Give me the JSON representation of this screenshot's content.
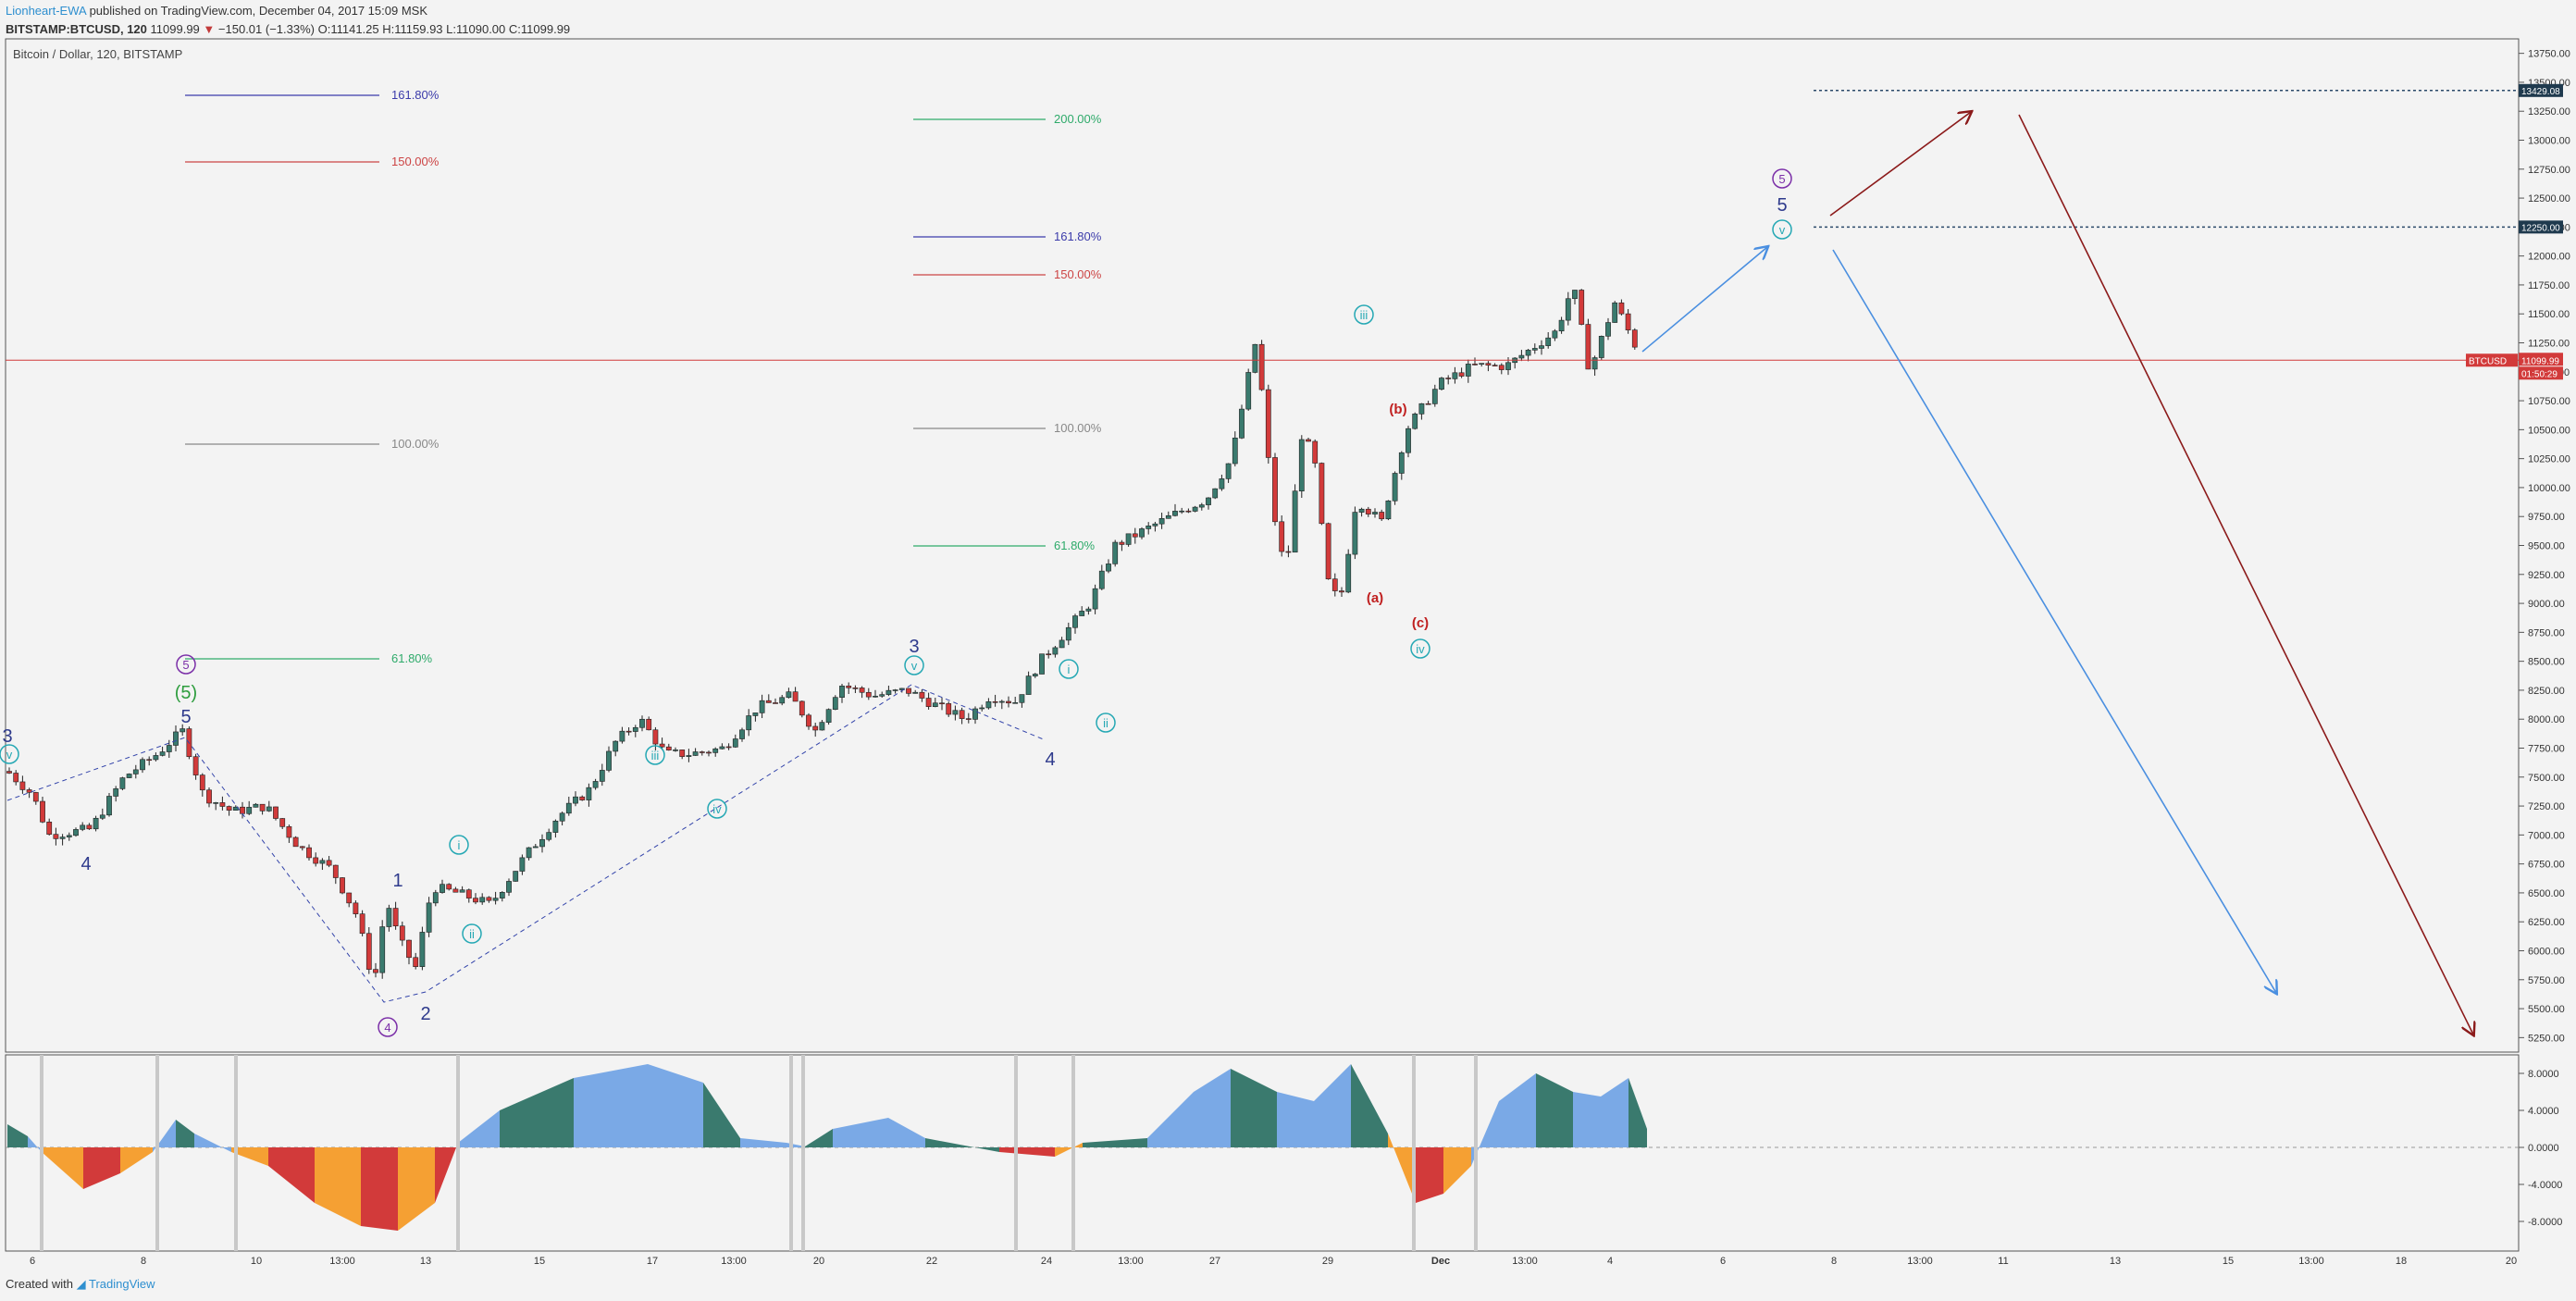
{
  "header": {
    "line1_author": "Lionheart-EWA",
    "line1_rest": " published on TradingView.com, December 04, 2017 15:09 MSK",
    "symbol": "BITSTAMP:BTCUSD, 120",
    "last": "11099.99",
    "change": "−150.01 (−1.33%)",
    "open": "O:11141.25",
    "high": "H:11159.93",
    "low": "L:11090.00",
    "close": "C:11099.99"
  },
  "footer": {
    "created_with": "Created with",
    "brand": "TradingView"
  },
  "colors": {
    "up": "#3a7a6e",
    "down": "#d23a3a",
    "blue": "#4a8fe0",
    "darkred": "#8b1a1a",
    "navy": "#2e3a8c",
    "purple": "#7b2fa8",
    "teal": "#25a8b4",
    "green": "#2e9d3e"
  },
  "chart_data": [
    {
      "type": "candlestick",
      "title": "Bitcoin / Dollar, 120, BITSTAMP",
      "ylim": [
        5125,
        13875
      ],
      "y_ticks": [
        "13750.00",
        "13500.00",
        "13250.00",
        "13000.00",
        "12750.00",
        "12500.00",
        "12250.00",
        "12000.00",
        "11750.00",
        "11500.00",
        "11250.00",
        "11000.00",
        "10750.00",
        "10500.00",
        "10250.00",
        "10000.00",
        "9750.00",
        "9500.00",
        "9250.00",
        "9000.00",
        "8750.00",
        "8500.00",
        "8250.00",
        "8000.00",
        "7750.00",
        "7500.00",
        "7250.00",
        "7000.00",
        "6750.00",
        "6500.00",
        "6250.00",
        "6000.00",
        "5750.00",
        "5500.00",
        "5250.00"
      ],
      "x_ticks": [
        "6",
        "8",
        "10",
        "13:00",
        "13",
        "15",
        "17",
        "13:00",
        "20",
        "22",
        "24",
        "13:00",
        "27",
        "29",
        "Dec",
        "13:00",
        "4",
        "6",
        "8",
        "13:00",
        "11",
        "13",
        "15",
        "13:00",
        "18",
        "20"
      ],
      "price_path": [
        [
          0,
          7550
        ],
        [
          0.03,
          7350
        ],
        [
          0.05,
          7000
        ],
        [
          0.1,
          7050
        ],
        [
          0.14,
          7500
        ],
        [
          0.18,
          7700
        ],
        [
          0.21,
          7900
        ],
        [
          0.235,
          7350
        ],
        [
          0.27,
          7200
        ],
        [
          0.31,
          7250
        ],
        [
          0.35,
          6900
        ],
        [
          0.39,
          6700
        ],
        [
          0.42,
          6300
        ],
        [
          0.44,
          5700
        ],
        [
          0.455,
          6450
        ],
        [
          0.47,
          6100
        ],
        [
          0.49,
          5850
        ],
        [
          0.51,
          6550
        ],
        [
          0.54,
          6500
        ],
        [
          0.58,
          6400
        ],
        [
          0.62,
          6800
        ],
        [
          0.66,
          7150
        ],
        [
          0.7,
          7400
        ],
        [
          0.73,
          7800
        ],
        [
          0.76,
          8000
        ],
        [
          0.79,
          7700
        ],
        [
          0.82,
          7700
        ],
        [
          0.86,
          7750
        ],
        [
          0.9,
          8100
        ],
        [
          0.94,
          8200
        ],
        [
          0.97,
          7900
        ],
        [
          1.0,
          8300
        ],
        [
          1.04,
          8200
        ],
        [
          1.08,
          8250
        ],
        [
          1.12,
          8100
        ],
        [
          1.15,
          8000
        ],
        [
          1.18,
          8200
        ],
        [
          1.21,
          8150
        ],
        [
          1.24,
          8500
        ],
        [
          1.27,
          8750
        ],
        [
          1.3,
          9000
        ],
        [
          1.33,
          9500
        ],
        [
          1.37,
          9650
        ],
        [
          1.41,
          9800
        ],
        [
          1.44,
          9900
        ],
        [
          1.47,
          10250
        ],
        [
          1.5,
          11300
        ],
        [
          1.52,
          9800
        ],
        [
          1.535,
          9250
        ],
        [
          1.555,
          10500
        ],
        [
          1.57,
          10200
        ],
        [
          1.585,
          9200
        ],
        [
          1.6,
          9000
        ],
        [
          1.62,
          9900
        ],
        [
          1.65,
          9700
        ],
        [
          1.68,
          10500
        ],
        [
          1.72,
          10900
        ],
        [
          1.76,
          11050
        ],
        [
          1.8,
          11050
        ],
        [
          1.83,
          11200
        ],
        [
          1.86,
          11350
        ],
        [
          1.88,
          11750
        ],
        [
          1.9,
          11000
        ],
        [
          1.93,
          11600
        ],
        [
          1.96,
          11150
        ],
        [
          1.98,
          11100
        ]
      ],
      "annotations": {
        "price_label": "BTCUSD",
        "price_value": "11099.99",
        "countdown": "01:50:29",
        "target_high": "13429.08",
        "target_low": "12250.00",
        "fib_left": [
          "161.80%",
          "150.00%",
          "100.00%",
          "61.80%"
        ],
        "fib_right": [
          "200.00%",
          "161.80%",
          "150.00%",
          "100.00%",
          "61.80%"
        ],
        "wave_labels": [
          "3",
          "v",
          "4",
          "5",
          "(5)",
          "3",
          "1",
          "4",
          "2",
          "i",
          "ii",
          "iii",
          "iv",
          "3",
          "v",
          "4",
          "i",
          "ii",
          "iii",
          "(a)",
          "(b)",
          "(c)",
          "iv",
          "5",
          "5",
          "v"
        ]
      }
    },
    {
      "type": "area",
      "title": "",
      "ylim": [
        -9.5,
        9.5
      ],
      "y_ticks": [
        "8.0000",
        "4.0000",
        "0.0000",
        "-4.0000",
        "-8.0000"
      ]
    }
  ]
}
